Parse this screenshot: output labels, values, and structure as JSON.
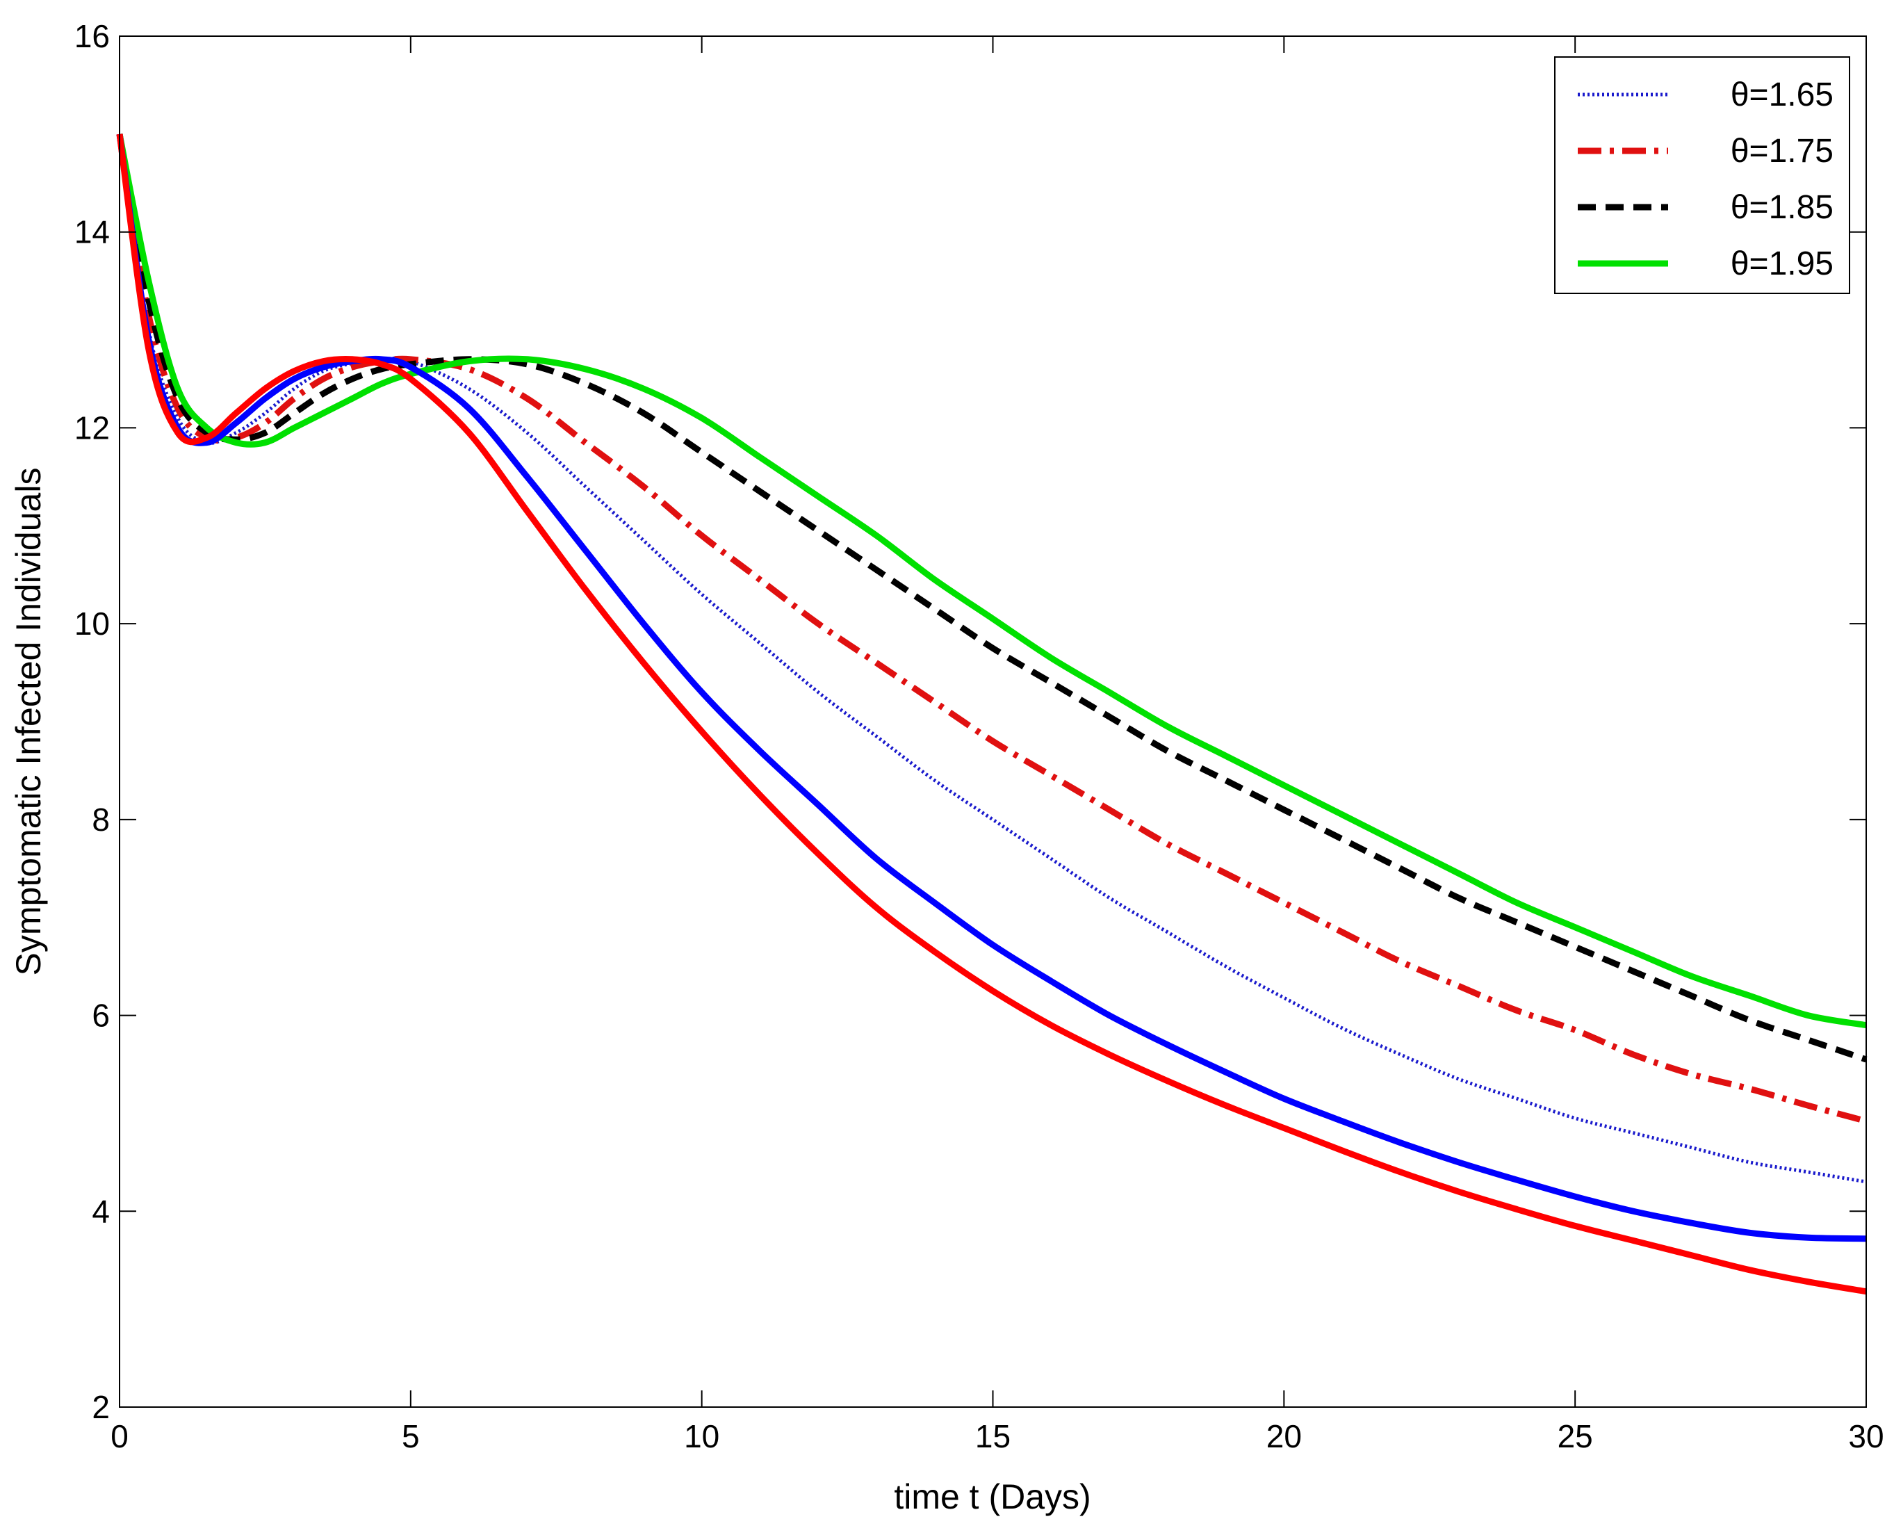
{
  "chart_data": {
    "type": "line",
    "title": "",
    "xlabel": "time t (Days)",
    "ylabel": "Symptomatic Infected Individuals",
    "xlim": [
      0,
      30
    ],
    "ylim": [
      2,
      16
    ],
    "xticks": [
      0,
      5,
      10,
      15,
      20,
      25,
      30
    ],
    "yticks": [
      2,
      4,
      6,
      8,
      10,
      12,
      14,
      16
    ],
    "grid": false,
    "legend_position": "top-right",
    "x": [
      0,
      0.5,
      1,
      1.5,
      2,
      2.5,
      3,
      3.5,
      4,
      4.5,
      5,
      6,
      7,
      8,
      9,
      10,
      11,
      12,
      13,
      14,
      15,
      16,
      17,
      18,
      19,
      20,
      21,
      22,
      23,
      24,
      25,
      26,
      27,
      28,
      29,
      30
    ],
    "series": [
      {
        "name": "θ=1.65",
        "in_legend": true,
        "color": "#1a1acc",
        "style": "dotted",
        "values": [
          15.0,
          13.0,
          12.1,
          11.85,
          11.95,
          12.15,
          12.4,
          12.58,
          12.66,
          12.7,
          12.68,
          12.4,
          11.95,
          11.4,
          10.85,
          10.3,
          9.8,
          9.3,
          8.85,
          8.4,
          8.0,
          7.6,
          7.2,
          6.85,
          6.5,
          6.18,
          5.87,
          5.6,
          5.35,
          5.15,
          4.95,
          4.8,
          4.65,
          4.5,
          4.4,
          4.3
        ]
      },
      {
        "name": "θ=1.75",
        "in_legend": true,
        "color": "#e01010",
        "style": "dashdot",
        "values": [
          15.0,
          13.15,
          12.2,
          11.9,
          11.9,
          12.05,
          12.3,
          12.5,
          12.62,
          12.68,
          12.7,
          12.6,
          12.3,
          11.85,
          11.4,
          10.9,
          10.45,
          10.0,
          9.6,
          9.2,
          8.8,
          8.45,
          8.1,
          7.75,
          7.45,
          7.15,
          6.85,
          6.55,
          6.3,
          6.05,
          5.85,
          5.6,
          5.4,
          5.25,
          5.08,
          4.92
        ]
      },
      {
        "name": "θ=1.85",
        "in_legend": true,
        "color": "#000000",
        "style": "dashed",
        "values": [
          15.0,
          13.3,
          12.3,
          11.95,
          11.88,
          11.95,
          12.15,
          12.35,
          12.5,
          12.6,
          12.65,
          12.7,
          12.65,
          12.45,
          12.15,
          11.75,
          11.35,
          10.95,
          10.55,
          10.15,
          9.75,
          9.4,
          9.05,
          8.7,
          8.4,
          8.1,
          7.8,
          7.5,
          7.2,
          6.95,
          6.7,
          6.45,
          6.2,
          5.95,
          5.75,
          5.55
        ]
      },
      {
        "name": "θ=1.95",
        "in_legend": true,
        "color": "#00e000",
        "style": "solid",
        "values": [
          15.0,
          13.5,
          12.4,
          12.0,
          11.85,
          11.85,
          12.0,
          12.15,
          12.3,
          12.45,
          12.55,
          12.68,
          12.7,
          12.6,
          12.4,
          12.1,
          11.7,
          11.3,
          10.9,
          10.45,
          10.05,
          9.65,
          9.3,
          8.95,
          8.65,
          8.35,
          8.05,
          7.75,
          7.45,
          7.15,
          6.9,
          6.65,
          6.4,
          6.2,
          6.0,
          5.9
        ]
      },
      {
        "name": "unlabeled blue solid curve",
        "in_legend": false,
        "color": "#0000ff",
        "style": "solid",
        "values": [
          15.0,
          12.9,
          12.0,
          11.85,
          12.05,
          12.3,
          12.5,
          12.62,
          12.68,
          12.7,
          12.62,
          12.2,
          11.5,
          10.75,
          10.0,
          9.3,
          8.7,
          8.15,
          7.6,
          7.15,
          6.72,
          6.35,
          6.0,
          5.7,
          5.42,
          5.15,
          4.92,
          4.7,
          4.5,
          4.32,
          4.15,
          4.0,
          3.88,
          3.78,
          3.73,
          3.72
        ]
      },
      {
        "name": "unlabeled red solid curve",
        "in_legend": false,
        "color": "#ff0000",
        "style": "solid",
        "values": [
          15.0,
          12.8,
          11.95,
          11.9,
          12.15,
          12.4,
          12.58,
          12.68,
          12.7,
          12.65,
          12.5,
          11.95,
          11.15,
          10.35,
          9.6,
          8.9,
          8.25,
          7.65,
          7.1,
          6.65,
          6.25,
          5.9,
          5.6,
          5.33,
          5.08,
          4.85,
          4.62,
          4.4,
          4.2,
          4.02,
          3.85,
          3.7,
          3.55,
          3.4,
          3.28,
          3.18
        ]
      }
    ]
  }
}
